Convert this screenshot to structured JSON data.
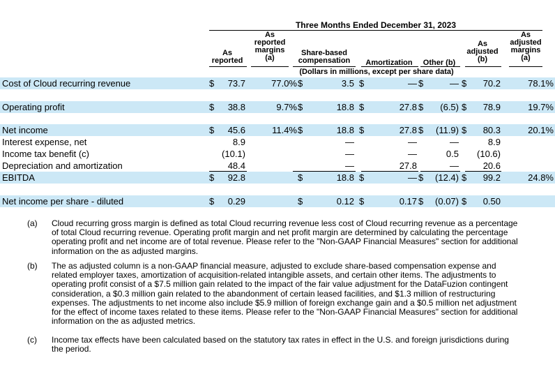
{
  "header": {
    "period": "Three Months Ended December 31, 2023",
    "col_as_reported": [
      "As",
      "reported"
    ],
    "col_reported_margins": [
      "As",
      "reported",
      "margins",
      "(a)"
    ],
    "col_sbc": [
      "Share-based",
      "compensation"
    ],
    "col_amort": "Amortization",
    "col_other": "Other (b)",
    "col_as_adjusted": [
      "As",
      "adjusted",
      "(b)"
    ],
    "col_adjusted_margins": [
      "As",
      "adjusted",
      "margins",
      "(a)"
    ],
    "units": "(Dollars in millions, except per share data)"
  },
  "rows": [
    {
      "label": "Cost of Cloud recurring revenue",
      "d1": "$",
      "rep": "73.7",
      "rmargin": "77.0%",
      "d2": "$",
      "sbc": "3.5",
      "d3": "$",
      "amort": "—",
      "d4": "$",
      "other": "—",
      "d5": "$",
      "adj": "70.2",
      "amargin": "78.1%"
    },
    {
      "label": "Operating profit",
      "d1": "$",
      "rep": "38.8",
      "rmargin": "9.7%",
      "d2": "$",
      "sbc": "18.8",
      "d3": "$",
      "amort": "27.8",
      "d4": "$",
      "other": "(6.5)",
      "d5": "$",
      "adj": "78.9",
      "amargin": "19.7%"
    },
    {
      "label": "Net income",
      "d1": "$",
      "rep": "45.6",
      "rmargin": "11.4%",
      "d2": "$",
      "sbc": "18.8",
      "d3": "$",
      "amort": "27.8",
      "d4": "$",
      "other": "(11.9)",
      "d5": "$",
      "adj": "80.3",
      "amargin": "20.1%"
    },
    {
      "label": "Interest expense, net",
      "d1": "",
      "rep": "8.9",
      "rmargin": "",
      "d2": "",
      "sbc": "—",
      "d3": "",
      "amort": "—",
      "d4": "",
      "other": "—",
      "d5": "",
      "adj": "8.9",
      "amargin": ""
    },
    {
      "label": "Income tax benefit (c)",
      "d1": "",
      "rep": "(10.1)",
      "rmargin": "",
      "d2": "",
      "sbc": "—",
      "d3": "",
      "amort": "—",
      "d4": "",
      "other": "0.5",
      "d5": "",
      "adj": "(10.6)",
      "amargin": ""
    },
    {
      "label": "Depreciation and amortization",
      "d1": "",
      "rep": "48.4",
      "rmargin": "",
      "d2": "",
      "sbc": "—",
      "d3": "",
      "amort": "27.8",
      "d4": "",
      "other": "—",
      "d5": "",
      "adj": "20.6",
      "amargin": ""
    },
    {
      "label": "EBITDA",
      "d1": "$",
      "rep": "92.8",
      "rmargin": "",
      "d2": "$",
      "sbc": "18.8",
      "d3": "$",
      "amort": "—",
      "d4": "$",
      "other": "(12.4)",
      "d5": "$",
      "adj": "99.2",
      "amargin": "24.8%"
    },
    {
      "label": "Net income per share - diluted",
      "d1": "$",
      "rep": "0.29",
      "rmargin": "",
      "d2": "$",
      "sbc": "0.12",
      "d3": "$",
      "amort": "0.17",
      "d4": "$",
      "other": "(0.07)",
      "d5": "$",
      "adj": "0.50",
      "amargin": ""
    }
  ],
  "footnotes": [
    {
      "mark": "(a)",
      "lines": [
        "Cloud recurring gross margin is defined as total Cloud recurring revenue less cost of Cloud recurring revenue as a percentage",
        "of total Cloud recurring revenue. Operating profit margin and net profit margin are determined by calculating the percentage",
        "operating profit and net income are of total revenue. Please refer to the \"Non-GAAP Financial Measures\" section for additional",
        "information on the as adjusted margins."
      ]
    },
    {
      "mark": "(b)",
      "lines": [
        "The as adjusted column is a non-GAAP financial measure, adjusted to exclude share-based compensation expense and",
        "related employer taxes, amortization of acquisition-related intangible assets, and certain other items. The adjustments to",
        "operating profit consist of a $7.5 million gain related to the impact of the fair value adjustment for the DataFuzion contingent",
        "consideration, a $0.3 million gain related to the abandonment of certain leased facilities, and $1.3 million of restructuring",
        "expenses. The adjustments to net income also include $5.9 million of foreign exchange gain and a $0.5 million net adjustment",
        "for the effect of income taxes related to these items. Please refer to the \"Non-GAAP Financial Measures\" section for additional",
        "information on the as adjusted metrics."
      ]
    },
    {
      "mark": "(c)",
      "lines": [
        "Income tax effects have been calculated based on the statutory tax rates in effect in the U.S. and foreign jurisdictions during",
        "the period."
      ]
    }
  ]
}
